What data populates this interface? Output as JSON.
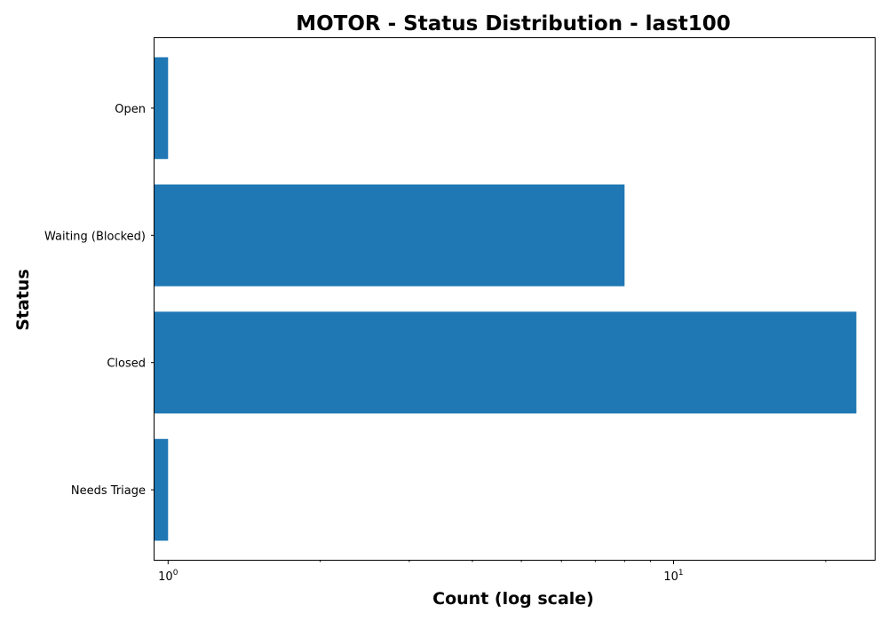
{
  "chart_data": {
    "type": "bar",
    "orientation": "horizontal",
    "title": "MOTOR - Status Distribution - last100",
    "xlabel": "Count (log scale)",
    "ylabel": "Status",
    "x_scale": "log",
    "xlim": [
      0.94,
      25.0
    ],
    "categories": [
      "Open",
      "Waiting (Blocked)",
      "Closed",
      "Needs Triage"
    ],
    "values": [
      1,
      8,
      23,
      1
    ],
    "x_ticks": [
      {
        "value": 1,
        "base": "10",
        "exp": "0"
      },
      {
        "value": 10,
        "base": "10",
        "exp": "1"
      }
    ],
    "bar_color": "#1f77b4",
    "grid": false,
    "legend": "none"
  }
}
